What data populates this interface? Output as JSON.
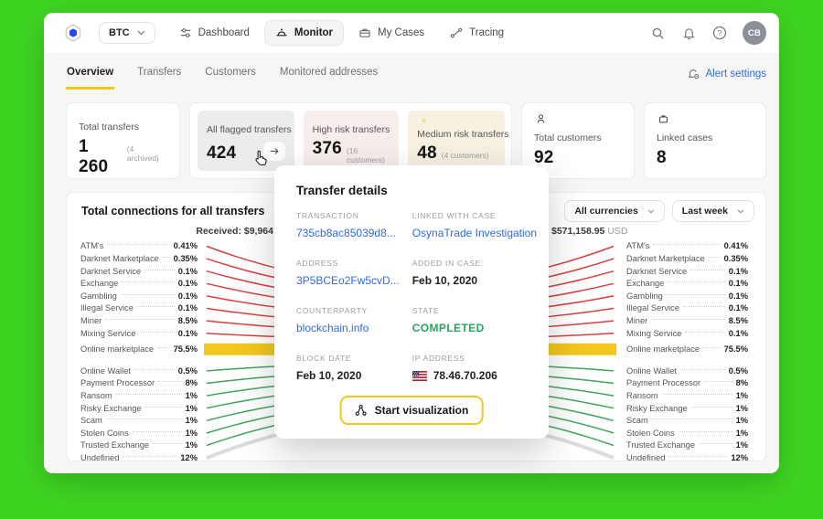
{
  "app": {
    "currency_selector": {
      "value": "BTC"
    },
    "nav_items": [
      {
        "label": "Dashboard",
        "active": false
      },
      {
        "label": "Monitor",
        "active": true
      },
      {
        "label": "My Cases",
        "active": false
      },
      {
        "label": "Tracing",
        "active": false
      }
    ],
    "user_initials": "CB"
  },
  "tabs": {
    "items": [
      {
        "label": "Overview",
        "active": true
      },
      {
        "label": "Transfers",
        "active": false
      },
      {
        "label": "Customers",
        "active": false
      },
      {
        "label": "Monitored addresses",
        "active": false
      }
    ],
    "alert_settings_label": "Alert settings"
  },
  "stats": {
    "total_transfers": {
      "label": "Total transfers",
      "value": "1 260",
      "note": "(4 archived)"
    },
    "flagged": {
      "label": "All flagged transfers",
      "value": "424"
    },
    "high_risk": {
      "label": "High risk transfers",
      "value": "376",
      "note": "(16 customers)"
    },
    "medium_risk": {
      "label": "Medium risk transfers",
      "value": "48",
      "note": "(4 customers)"
    },
    "total_customers": {
      "label": "Total customers",
      "value": "92"
    },
    "linked_cases": {
      "label": "Linked cases",
      "value": "8"
    }
  },
  "chart_data": {
    "type": "flow",
    "title": "Total connections for all transfers",
    "received_label": "Received: $9,964",
    "total_received_usd": "$571,158.95",
    "total_received_currency": "USD",
    "filters": {
      "currency": "All currencies",
      "period": "Last week"
    },
    "legend_position": "both-sides",
    "categories": [
      {
        "name": "ATM's",
        "value": "0.41%",
        "group": "risk"
      },
      {
        "name": "Darknet Marketplace",
        "value": "0.35%",
        "group": "risk"
      },
      {
        "name": "Darknet Service",
        "value": "0.1%",
        "group": "risk"
      },
      {
        "name": "Exchange",
        "value": "0.1%",
        "group": "risk"
      },
      {
        "name": "Gambling",
        "value": "0.1%",
        "group": "risk"
      },
      {
        "name": "Illegal Service",
        "value": "0.1%",
        "group": "risk"
      },
      {
        "name": "Miner",
        "value": "8.5%",
        "group": "risk"
      },
      {
        "name": "Mixing Service",
        "value": "0.1%",
        "group": "risk"
      },
      {
        "name": "Online marketplace",
        "value": "75.5%",
        "group": "marketplace"
      },
      {
        "name": "Online Wallet",
        "value": "0.5%",
        "group": "safe"
      },
      {
        "name": "Payment Processor",
        "value": "8%",
        "group": "safe"
      },
      {
        "name": "Ransom",
        "value": "1%",
        "group": "safe"
      },
      {
        "name": "Risky Exchange",
        "value": "1%",
        "group": "safe"
      },
      {
        "name": "Scam",
        "value": "1%",
        "group": "safe"
      },
      {
        "name": "Stolen Coins",
        "value": "1%",
        "group": "safe"
      },
      {
        "name": "Trusted Exchange",
        "value": "1%",
        "group": "safe"
      },
      {
        "name": "Undefined",
        "value": "12%",
        "group": "undefined"
      }
    ],
    "group_colors": {
      "risk": "#D8403C",
      "marketplace": "#F2C71E",
      "safe": "#3FA45B",
      "undefined": "#DCDCDA"
    }
  },
  "modal": {
    "title": "Transfer details",
    "fields": [
      {
        "label": "TRANSACTION",
        "value": "735cb8ac85039d8...",
        "type": "link"
      },
      {
        "label": "LINKED WITH CASE",
        "value": "OsynaTrade Investigation",
        "type": "link"
      },
      {
        "label": "ADDRESS",
        "value": "3P5BCEo2Fw5cvD...",
        "type": "link"
      },
      {
        "label": "ADDED IN CASE",
        "value": "Feb 10, 2020",
        "type": "text"
      },
      {
        "label": "COUNTERPARTY",
        "value": "blockchain.info",
        "type": "link"
      },
      {
        "label": "STATE",
        "value": "COMPLETED",
        "type": "status"
      },
      {
        "label": "BLOCK DATE",
        "value": "Feb 10, 2020",
        "type": "text"
      },
      {
        "label": "IP ADDRESS",
        "value": "78.46.70.206",
        "type": "ip"
      }
    ],
    "action_label": "Start visualization"
  }
}
